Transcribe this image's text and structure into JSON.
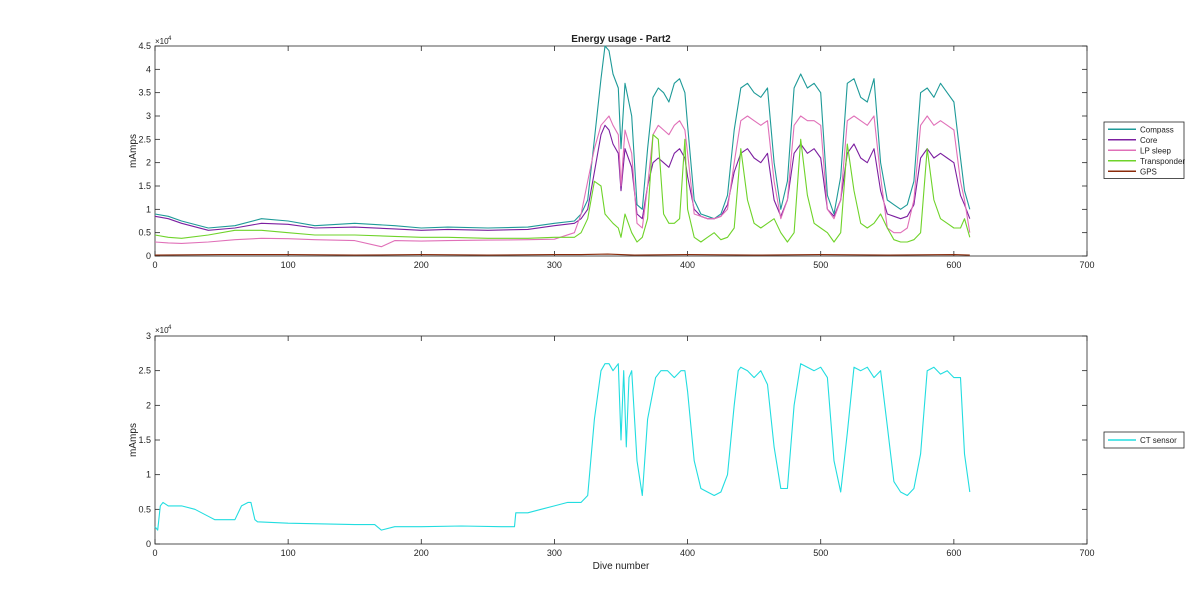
{
  "chart_data": [
    {
      "type": "line",
      "title": "Energy usage - Part2",
      "xlabel": "",
      "ylabel": "mAmps",
      "xlim": [
        0,
        700
      ],
      "ylim": [
        0,
        4.5
      ],
      "exponent_label": "×10",
      "exponent_power": "4",
      "xticks": [
        "0",
        "100",
        "200",
        "300",
        "400",
        "500",
        "600",
        "700"
      ],
      "yticks": [
        "0",
        "0.5",
        "1",
        "1.5",
        "2",
        "2.5",
        "3",
        "3.5",
        "4",
        "4.5"
      ],
      "legend_position": "right",
      "grid": false,
      "series": [
        {
          "name": "Compass",
          "color": "#1e9a98",
          "x": [
            0,
            10,
            20,
            40,
            60,
            80,
            100,
            120,
            150,
            180,
            200,
            220,
            250,
            280,
            300,
            315,
            320,
            325,
            330,
            335,
            338,
            341,
            344,
            348,
            350,
            353,
            358,
            362,
            366,
            370,
            374,
            378,
            382,
            386,
            390,
            394,
            398,
            400,
            405,
            410,
            415,
            420,
            425,
            430,
            435,
            440,
            445,
            450,
            455,
            460,
            465,
            470,
            475,
            480,
            485,
            490,
            495,
            500,
            505,
            510,
            515,
            520,
            525,
            530,
            535,
            540,
            545,
            550,
            555,
            560,
            565,
            570,
            575,
            580,
            585,
            590,
            595,
            600,
            605,
            608,
            612
          ],
          "values": [
            0.9,
            0.85,
            0.75,
            0.6,
            0.65,
            0.8,
            0.75,
            0.65,
            0.7,
            0.65,
            0.6,
            0.62,
            0.6,
            0.62,
            0.7,
            0.75,
            0.9,
            1.2,
            2.5,
            3.8,
            4.5,
            4.4,
            3.9,
            3.6,
            2.3,
            3.7,
            3.0,
            1.1,
            1.0,
            2.3,
            3.4,
            3.6,
            3.5,
            3.3,
            3.7,
            3.8,
            3.5,
            2.8,
            1.2,
            0.9,
            0.85,
            0.8,
            0.9,
            1.3,
            2.7,
            3.6,
            3.7,
            3.5,
            3.4,
            3.6,
            2.0,
            1.0,
            1.6,
            3.6,
            3.9,
            3.6,
            3.7,
            3.5,
            1.3,
            0.9,
            1.7,
            3.7,
            3.8,
            3.4,
            3.3,
            3.8,
            2.0,
            1.2,
            1.1,
            1.0,
            1.1,
            1.6,
            3.5,
            3.6,
            3.4,
            3.7,
            3.5,
            3.3,
            2.1,
            1.4,
            1.0
          ]
        },
        {
          "name": "Core",
          "color": "#7c1fa0",
          "x": [
            0,
            10,
            20,
            40,
            60,
            80,
            100,
            120,
            150,
            180,
            200,
            220,
            250,
            280,
            300,
            315,
            320,
            325,
            330,
            335,
            338,
            341,
            344,
            348,
            350,
            353,
            358,
            362,
            366,
            370,
            374,
            378,
            382,
            386,
            390,
            394,
            398,
            400,
            405,
            410,
            415,
            420,
            425,
            430,
            435,
            440,
            445,
            450,
            455,
            460,
            465,
            470,
            475,
            480,
            485,
            490,
            495,
            500,
            505,
            510,
            515,
            520,
            525,
            530,
            535,
            540,
            545,
            550,
            555,
            560,
            565,
            570,
            575,
            580,
            585,
            590,
            595,
            600,
            605,
            608,
            612
          ],
          "values": [
            0.85,
            0.8,
            0.7,
            0.55,
            0.6,
            0.7,
            0.68,
            0.6,
            0.62,
            0.58,
            0.55,
            0.57,
            0.55,
            0.57,
            0.65,
            0.7,
            0.8,
            1.0,
            1.8,
            2.6,
            2.8,
            2.7,
            2.4,
            2.2,
            1.4,
            2.3,
            1.9,
            0.9,
            0.8,
            1.5,
            2.0,
            2.1,
            2.0,
            1.9,
            2.2,
            2.3,
            2.1,
            1.7,
            1.0,
            0.85,
            0.8,
            0.8,
            0.85,
            1.1,
            1.8,
            2.2,
            2.3,
            2.1,
            2.0,
            2.2,
            1.2,
            0.85,
            1.2,
            2.2,
            2.4,
            2.2,
            2.3,
            2.1,
            1.0,
            0.85,
            1.2,
            2.2,
            2.4,
            2.1,
            2.0,
            2.3,
            1.4,
            0.9,
            0.85,
            0.8,
            0.85,
            1.1,
            2.1,
            2.3,
            2.1,
            2.2,
            2.1,
            2.0,
            1.3,
            1.1,
            0.8
          ]
        },
        {
          "name": "LP sleep",
          "color": "#e070b8",
          "x": [
            0,
            10,
            20,
            40,
            60,
            80,
            100,
            120,
            150,
            170,
            180,
            200,
            220,
            250,
            280,
            300,
            315,
            320,
            325,
            330,
            335,
            338,
            341,
            344,
            348,
            350,
            353,
            358,
            362,
            366,
            370,
            374,
            378,
            382,
            386,
            390,
            394,
            398,
            400,
            405,
            410,
            415,
            420,
            425,
            430,
            435,
            440,
            445,
            450,
            455,
            460,
            465,
            470,
            475,
            480,
            485,
            490,
            495,
            500,
            505,
            510,
            515,
            520,
            525,
            530,
            535,
            540,
            545,
            550,
            555,
            560,
            565,
            570,
            575,
            580,
            585,
            590,
            595,
            600,
            605,
            608,
            612
          ],
          "values": [
            0.3,
            0.28,
            0.27,
            0.3,
            0.35,
            0.38,
            0.37,
            0.35,
            0.33,
            0.2,
            0.33,
            0.32,
            0.33,
            0.34,
            0.35,
            0.36,
            0.5,
            0.9,
            1.6,
            2.3,
            2.8,
            2.9,
            3.0,
            2.8,
            2.6,
            1.5,
            2.7,
            2.2,
            0.7,
            0.6,
            1.5,
            2.6,
            2.8,
            2.7,
            2.6,
            2.8,
            2.9,
            2.7,
            2.2,
            0.9,
            0.85,
            0.8,
            0.8,
            0.85,
            1.0,
            2.0,
            2.9,
            3.0,
            2.9,
            2.8,
            2.9,
            1.6,
            0.8,
            1.2,
            2.8,
            3.0,
            2.9,
            2.9,
            2.8,
            1.0,
            0.8,
            1.2,
            2.9,
            3.0,
            2.9,
            2.8,
            3.0,
            1.7,
            0.6,
            0.5,
            0.5,
            0.6,
            1.2,
            2.8,
            3.0,
            2.8,
            2.9,
            2.8,
            2.7,
            1.6,
            1.2,
            0.5
          ]
        },
        {
          "name": "Transponder",
          "color": "#6fd32a",
          "x": [
            0,
            10,
            20,
            40,
            60,
            80,
            100,
            120,
            150,
            180,
            200,
            220,
            250,
            280,
            300,
            315,
            320,
            325,
            330,
            335,
            338,
            341,
            344,
            348,
            350,
            353,
            358,
            362,
            366,
            370,
            374,
            378,
            382,
            386,
            390,
            394,
            398,
            400,
            405,
            410,
            415,
            420,
            425,
            430,
            435,
            440,
            445,
            450,
            455,
            460,
            465,
            470,
            475,
            480,
            485,
            490,
            495,
            500,
            505,
            510,
            515,
            520,
            525,
            530,
            535,
            540,
            545,
            550,
            555,
            560,
            565,
            570,
            575,
            580,
            585,
            590,
            595,
            600,
            605,
            608,
            612
          ],
          "values": [
            0.45,
            0.4,
            0.38,
            0.45,
            0.55,
            0.55,
            0.5,
            0.45,
            0.45,
            0.42,
            0.4,
            0.4,
            0.38,
            0.38,
            0.4,
            0.4,
            0.5,
            0.8,
            1.6,
            1.5,
            0.9,
            0.8,
            0.7,
            0.6,
            0.4,
            0.9,
            0.5,
            0.3,
            0.4,
            0.8,
            2.6,
            2.5,
            0.9,
            0.7,
            0.7,
            0.8,
            2.5,
            1.0,
            0.4,
            0.3,
            0.4,
            0.5,
            0.35,
            0.4,
            0.6,
            2.3,
            1.2,
            0.7,
            0.6,
            0.7,
            0.8,
            0.5,
            0.3,
            0.5,
            2.5,
            1.3,
            0.7,
            0.6,
            0.5,
            0.3,
            0.5,
            2.4,
            1.4,
            0.7,
            0.6,
            0.7,
            0.9,
            0.6,
            0.35,
            0.3,
            0.3,
            0.35,
            0.5,
            2.3,
            1.2,
            0.8,
            0.7,
            0.6,
            0.6,
            0.8,
            0.4
          ]
        },
        {
          "name": "GPS",
          "color": "#8b2b0a",
          "x": [
            0,
            50,
            100,
            150,
            200,
            250,
            300,
            320,
            340,
            360,
            400,
            450,
            500,
            550,
            600,
            612
          ],
          "values": [
            0.02,
            0.03,
            0.03,
            0.02,
            0.03,
            0.02,
            0.03,
            0.03,
            0.04,
            0.02,
            0.03,
            0.02,
            0.03,
            0.02,
            0.03,
            0.02
          ]
        }
      ]
    },
    {
      "type": "line",
      "title": "",
      "xlabel": "Dive number",
      "ylabel": "mAmps",
      "xlim": [
        0,
        700
      ],
      "ylim": [
        0,
        3
      ],
      "exponent_label": "×10",
      "exponent_power": "4",
      "xticks": [
        "0",
        "100",
        "200",
        "300",
        "400",
        "500",
        "600",
        "700"
      ],
      "yticks": [
        "0",
        "0.5",
        "1",
        "1.5",
        "2",
        "2.5",
        "3"
      ],
      "legend_position": "right",
      "grid": false,
      "series": [
        {
          "name": "CT sensor",
          "color": "#22dde0",
          "x": [
            0,
            2,
            4,
            6,
            10,
            20,
            30,
            40,
            45,
            60,
            65,
            70,
            72,
            75,
            77,
            100,
            150,
            165,
            170,
            180,
            200,
            230,
            260,
            270,
            271,
            280,
            290,
            300,
            310,
            320,
            325,
            330,
            335,
            338,
            341,
            344,
            348,
            350,
            352,
            354,
            356,
            358,
            362,
            366,
            370,
            376,
            380,
            385,
            390,
            395,
            398,
            400,
            405,
            410,
            415,
            420,
            425,
            430,
            435,
            438,
            440,
            445,
            450,
            455,
            460,
            465,
            470,
            475,
            480,
            485,
            490,
            495,
            500,
            505,
            510,
            515,
            520,
            525,
            530,
            535,
            540,
            545,
            550,
            555,
            560,
            565,
            570,
            575,
            580,
            585,
            590,
            595,
            600,
            605,
            608,
            612
          ],
          "values": [
            0.25,
            0.2,
            0.55,
            0.6,
            0.55,
            0.55,
            0.5,
            0.4,
            0.35,
            0.35,
            0.55,
            0.6,
            0.6,
            0.35,
            0.32,
            0.3,
            0.28,
            0.28,
            0.2,
            0.25,
            0.25,
            0.26,
            0.25,
            0.25,
            0.45,
            0.45,
            0.5,
            0.55,
            0.6,
            0.6,
            0.7,
            1.8,
            2.5,
            2.6,
            2.6,
            2.5,
            2.6,
            1.5,
            2.5,
            1.4,
            2.4,
            2.5,
            1.2,
            0.7,
            1.8,
            2.4,
            2.5,
            2.5,
            2.4,
            2.5,
            2.5,
            2.2,
            1.2,
            0.8,
            0.75,
            0.7,
            0.75,
            1.0,
            2.0,
            2.5,
            2.55,
            2.5,
            2.4,
            2.5,
            2.3,
            1.4,
            0.8,
            0.8,
            2.0,
            2.6,
            2.55,
            2.5,
            2.55,
            2.4,
            1.2,
            0.75,
            1.6,
            2.55,
            2.5,
            2.55,
            2.4,
            2.5,
            1.7,
            0.9,
            0.75,
            0.7,
            0.8,
            1.3,
            2.5,
            2.55,
            2.45,
            2.5,
            2.4,
            2.4,
            1.3,
            0.75
          ]
        }
      ]
    }
  ]
}
